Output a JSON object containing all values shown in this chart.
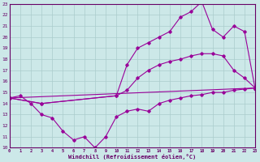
{
  "xlabel": "Windchill (Refroidissement éolien,°C)",
  "bg_color": "#cce8e8",
  "line_color": "#990099",
  "xmin": 0,
  "xmax": 23,
  "ymin": 10,
  "ymax": 23,
  "series": [
    {
      "x": [
        0,
        1,
        2,
        3,
        4,
        5,
        6,
        7,
        8,
        9,
        10,
        11,
        12,
        13,
        14,
        15,
        16,
        17,
        18,
        19,
        20,
        21,
        22,
        23
      ],
      "y": [
        14.5,
        14.7,
        14.0,
        13.0,
        12.7,
        11.5,
        10.7,
        11.0,
        10.0,
        11.0,
        12.8,
        13.3,
        13.5,
        13.3,
        14.0,
        14.3,
        14.5,
        14.7,
        14.8,
        15.0,
        15.0,
        15.2,
        15.3,
        15.4
      ]
    },
    {
      "x": [
        0,
        3,
        10,
        11,
        12,
        13,
        14,
        15,
        16,
        17,
        18,
        19,
        20,
        21,
        22,
        23
      ],
      "y": [
        14.5,
        14.0,
        14.7,
        17.5,
        19.0,
        19.5,
        20.0,
        20.5,
        21.8,
        22.3,
        23.2,
        20.7,
        20.0,
        21.0,
        20.5,
        15.3
      ]
    },
    {
      "x": [
        0,
        3,
        10,
        11,
        12,
        13,
        14,
        15,
        16,
        17,
        18,
        19,
        20,
        21,
        22,
        23
      ],
      "y": [
        14.5,
        14.0,
        14.7,
        15.2,
        16.3,
        17.0,
        17.5,
        17.8,
        18.0,
        18.3,
        18.5,
        18.5,
        18.3,
        17.0,
        16.3,
        15.4
      ]
    },
    {
      "x": [
        0,
        23
      ],
      "y": [
        14.5,
        15.4
      ]
    }
  ],
  "grid_color": "#aacccc",
  "yticks": [
    10,
    11,
    12,
    13,
    14,
    15,
    16,
    17,
    18,
    19,
    20,
    21,
    22,
    23
  ],
  "xticks": [
    0,
    1,
    2,
    3,
    4,
    5,
    6,
    7,
    8,
    9,
    10,
    11,
    12,
    13,
    14,
    15,
    16,
    17,
    18,
    19,
    20,
    21,
    22,
    23
  ]
}
